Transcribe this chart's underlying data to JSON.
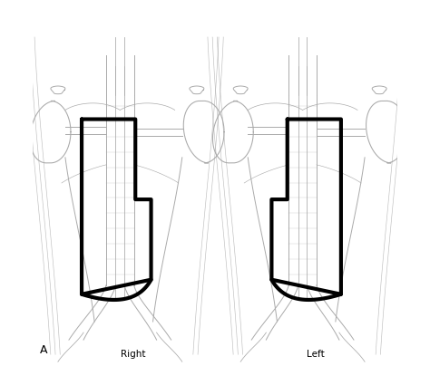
{
  "label_A": "A",
  "label_right": "Right",
  "label_left": "Left",
  "bg_color": "#ffffff",
  "line_color": "#aaaaaa",
  "bold_line_color": "#000000",
  "bold_lw": 3.0,
  "thin_lw": 0.7,
  "fig_width": 4.74,
  "fig_height": 4.04,
  "dpi": 100
}
